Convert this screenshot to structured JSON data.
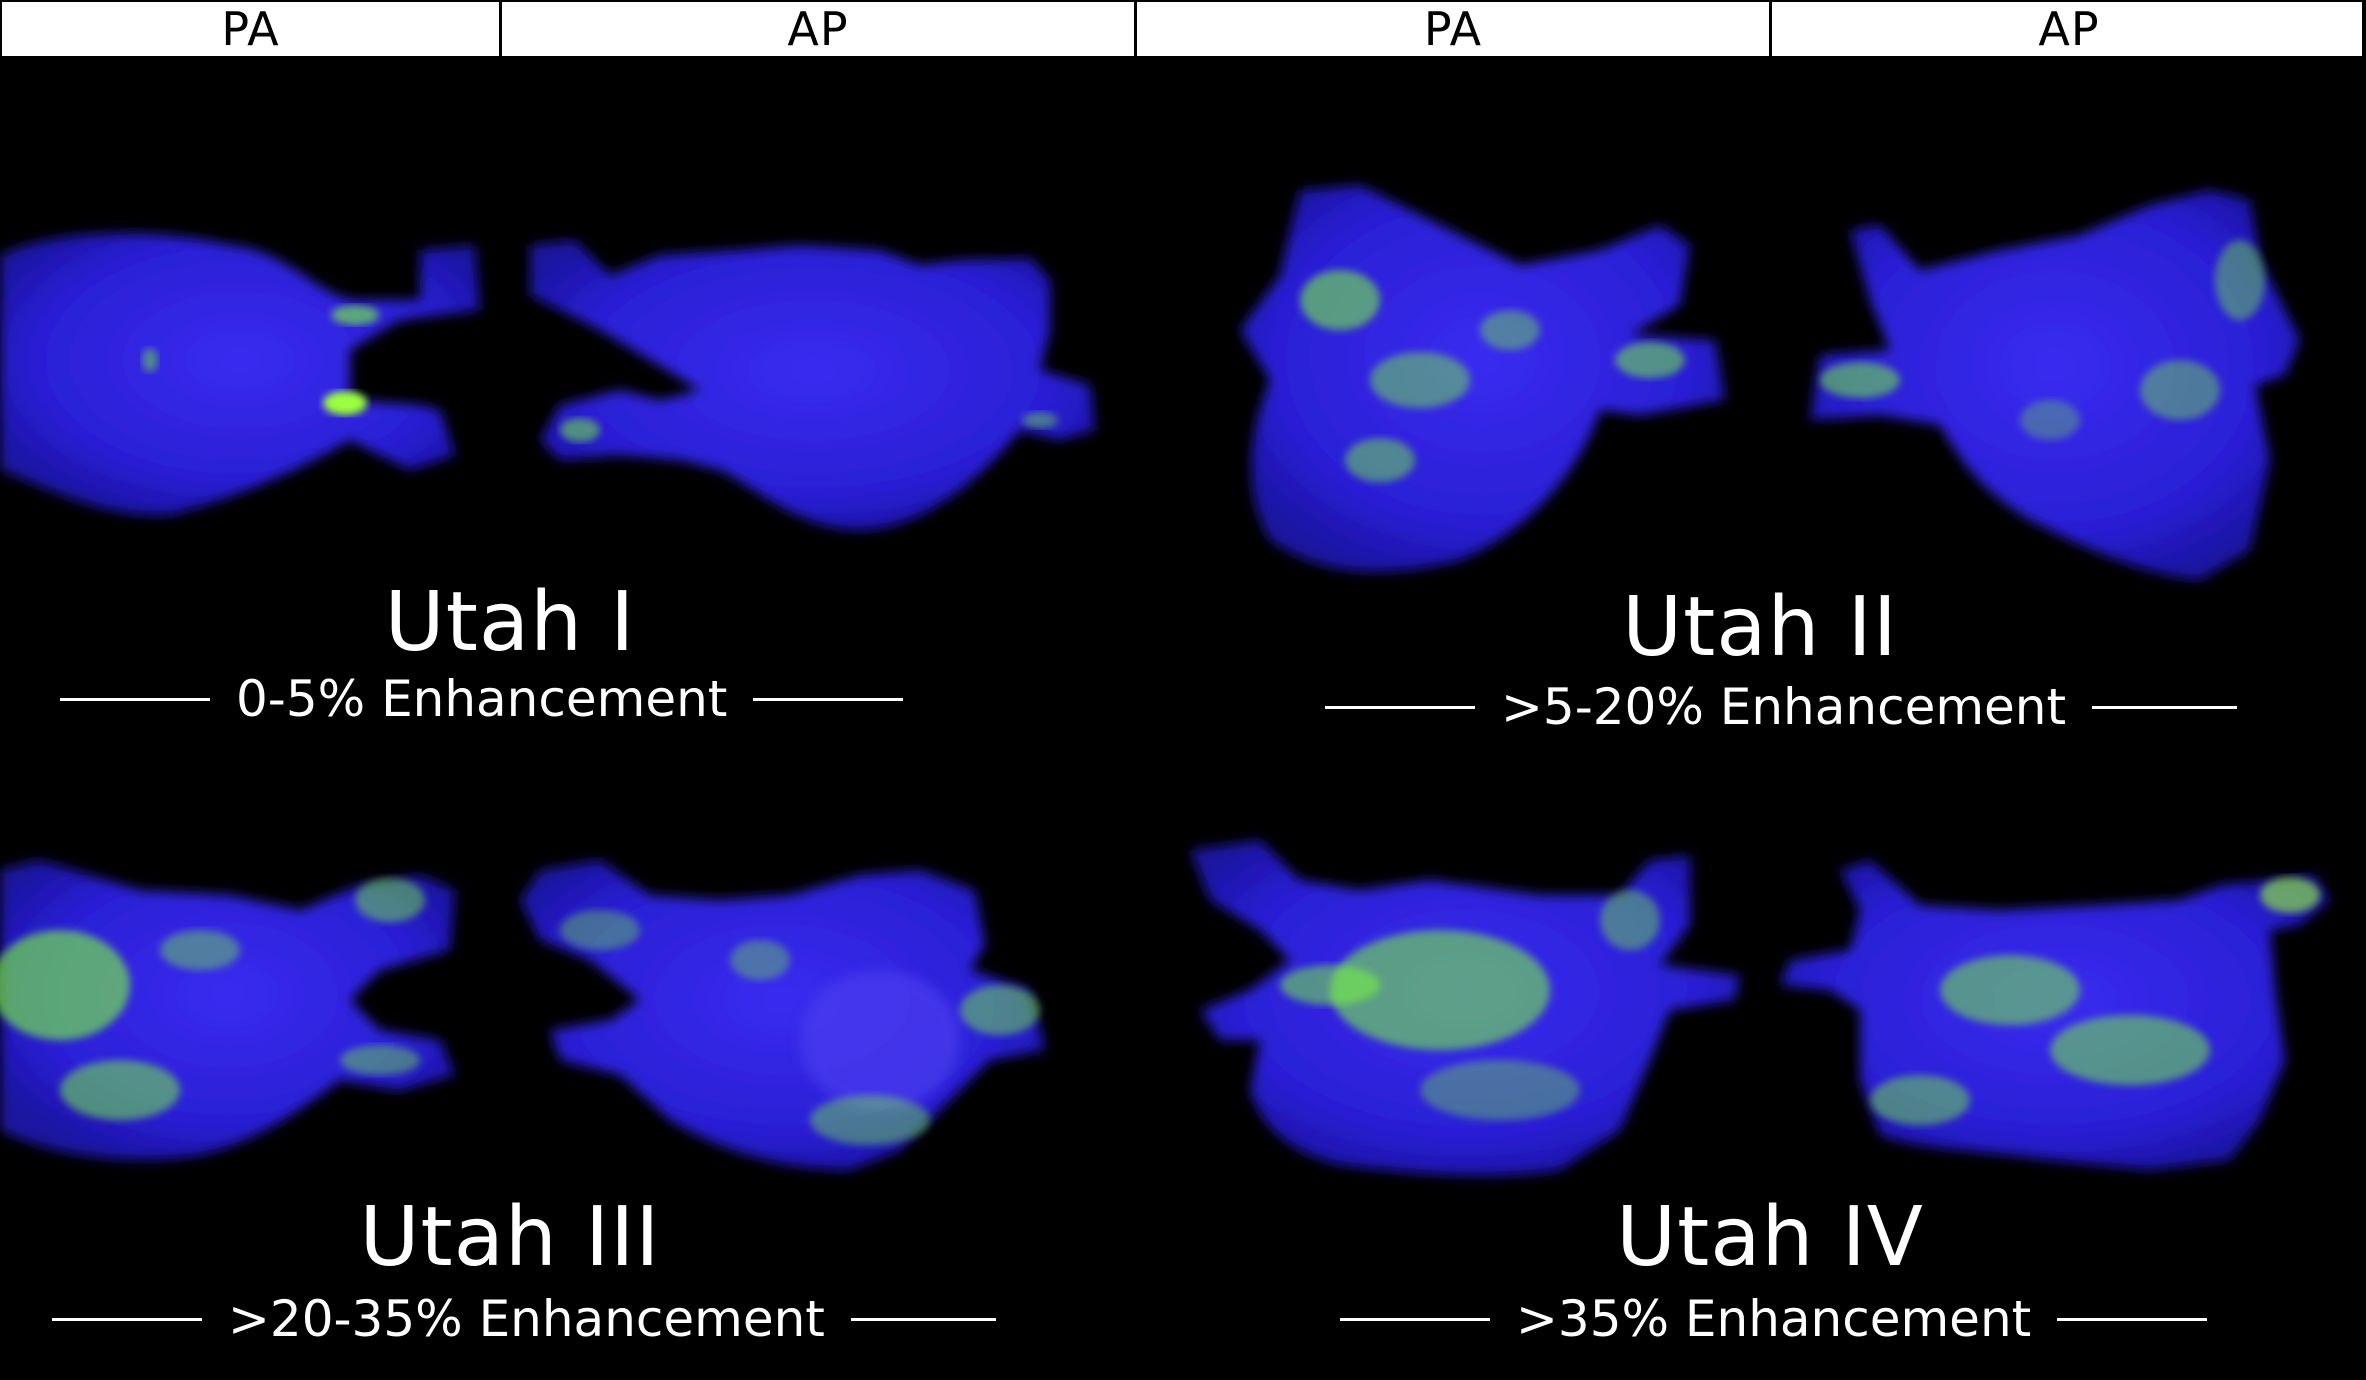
{
  "header": {
    "labels": [
      "PA",
      "AP",
      "PA",
      "AP"
    ]
  },
  "panels": [
    {
      "title": "Utah I",
      "subtitle": "0-5% Enhancement"
    },
    {
      "title": "Utah II",
      "subtitle": ">5-20% Enhancement"
    },
    {
      "title": "Utah III",
      "subtitle": ">20-35% Enhancement"
    },
    {
      "title": "Utah IV",
      "subtitle": ">35% Enhancement"
    }
  ],
  "colors": {
    "background": "#000000",
    "atrium_base": "#2a1fd6",
    "enhancement": "#7dff3a",
    "header_bg": "#ffffff"
  }
}
